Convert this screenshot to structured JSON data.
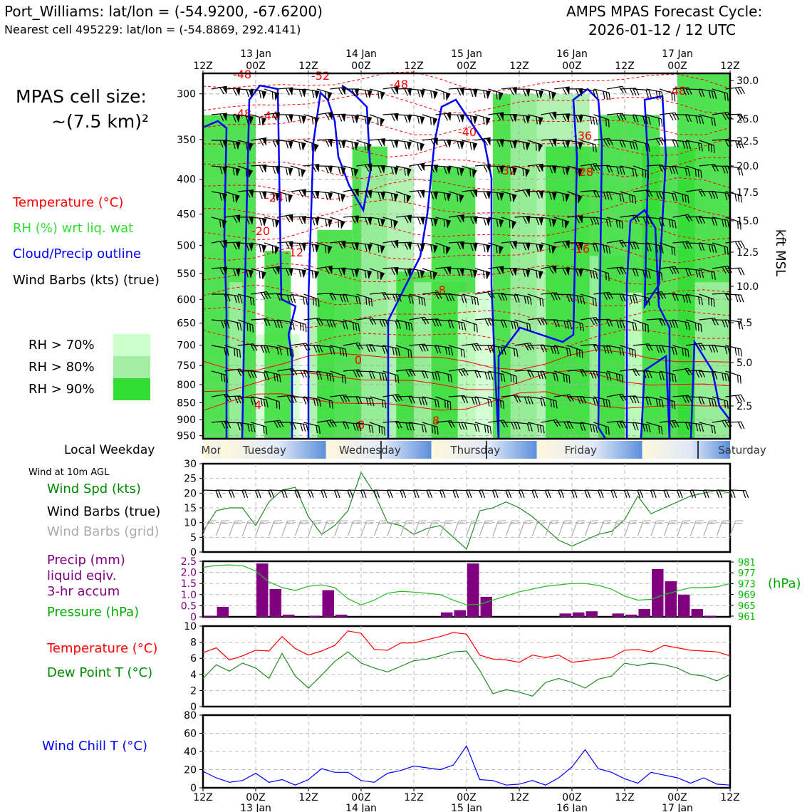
{
  "header": {
    "station": "Port_Williams: lat/lon = (-54.9200, -67.6200)",
    "nearest": "Nearest cell 495229: lat/lon = (-54.8869, 292.4141)",
    "model": "AMPS MPAS Forecast Cycle:",
    "cycle": "2026-01-12 / 12 UTC",
    "cell_size": "MPAS cell size:",
    "cell_size_value": "~(7.5 km)²"
  },
  "legend_top": {
    "temperature": "Temperature (°C)",
    "rh": "RH (%) wrt liq. wat",
    "cloud": "Cloud/Precip outline",
    "wind": "Wind Barbs (kts) (true)",
    "rh70": "RH > 70%",
    "rh80": "RH > 80%",
    "rh90": "RH > 90%",
    "colors": {
      "temp": "#ff0000",
      "rh": "#33dd33",
      "cloud": "#0000ff",
      "rh70": "#ccffcc",
      "rh80": "#a3eea3",
      "rh90": "#33dd33"
    }
  },
  "time_axis": {
    "ticks": [
      "12Z",
      "00Z",
      "12Z",
      "00Z",
      "12Z",
      "00Z",
      "12Z",
      "00Z",
      "12Z",
      "00Z",
      "12Z"
    ],
    "dates": [
      "13 Jan",
      "14 Jan",
      "15 Jan",
      "16 Jan",
      "17 Jan"
    ],
    "weekdays": [
      "Monday",
      "Tuesday",
      "Wednesday",
      "Thursday",
      "Friday",
      "Saturday"
    ],
    "weekday_label": "Local Weekday"
  },
  "profile_axis": {
    "pressure_ticks": [
      "300",
      "350",
      "400",
      "450",
      "500",
      "550",
      "600",
      "650",
      "700",
      "750",
      "800",
      "850",
      "900",
      "950"
    ],
    "kft_ticks": [
      "30.0",
      "25.0",
      "22.5",
      "20.0",
      "17.5",
      "15.0",
      "12.5",
      "10.0",
      "7.5",
      "5.0",
      "2.5"
    ],
    "kft_label": "kft MSL",
    "temp_labels": [
      "-48",
      "-52",
      "-48",
      "-48",
      "-48",
      "-44",
      "-40",
      "-36",
      "-32",
      "-28",
      "-24",
      "-20",
      "-16",
      "-12",
      "-8",
      "-4",
      "0",
      "8",
      "8",
      "4"
    ]
  },
  "wind_panel": {
    "title": "Wind at 10m AGL",
    "speed_label": "Wind Spd (kts)",
    "barbs_true": "Wind Barbs (true)",
    "barbs_grid": "Wind Barbs (grid)",
    "yticks": [
      "0",
      "5",
      "10",
      "15",
      "20",
      "25",
      "30"
    ]
  },
  "precip_panel": {
    "precip_label_1": "Precip (mm)",
    "precip_label_2": "liquid eqiv.",
    "precip_label_3": "3-hr accum",
    "pressure_label": "Pressure (hPa)",
    "hpa_label": "(hPa)",
    "left_ticks": [
      "0",
      "0.5",
      "1.0",
      "1.5",
      "2.0",
      "2.5"
    ],
    "right_ticks": [
      "981",
      "977",
      "973",
      "969",
      "965",
      "961"
    ]
  },
  "temp_panel": {
    "temp_label": "Temperature (°C)",
    "dew_label": "Dew Point T (°C)",
    "yticks": [
      "0",
      "2",
      "4",
      "6",
      "8",
      "10"
    ]
  },
  "chill_panel": {
    "label": "Wind Chill T (°C)",
    "yticks": [
      "0",
      "20",
      "40",
      "60",
      "80"
    ]
  },
  "chart_data": [
    {
      "type": "line",
      "title": "Wind Spd (kts)",
      "x_hours": [
        0,
        3,
        6,
        9,
        12,
        15,
        18,
        21,
        24,
        27,
        30,
        33,
        36,
        39,
        42,
        45,
        48,
        51,
        54,
        57,
        60,
        63,
        66,
        69,
        72,
        75,
        78,
        81,
        84,
        87,
        90,
        93,
        96,
        99,
        102,
        105,
        108,
        111,
        114,
        117,
        120
      ],
      "values": [
        7,
        14,
        15,
        15,
        9,
        17,
        21,
        22,
        12,
        6,
        9,
        14,
        27,
        20,
        10,
        9,
        6,
        8,
        9,
        5,
        1,
        14,
        15,
        17,
        15,
        12,
        8,
        4,
        2,
        4,
        6,
        7,
        11,
        19,
        13,
        15,
        17,
        19,
        20,
        21,
        20
      ],
      "ylim": [
        0,
        30
      ]
    },
    {
      "type": "bar",
      "title": "Precip (mm) 3-hr accum",
      "x_hours": [
        0,
        3,
        6,
        9,
        12,
        15,
        18,
        21,
        24,
        27,
        30,
        33,
        36,
        39,
        42,
        45,
        48,
        51,
        54,
        57,
        60,
        63,
        66,
        69,
        72,
        75,
        78,
        81,
        84,
        87,
        90,
        93,
        96,
        99,
        102,
        105,
        108,
        111,
        114,
        117,
        120
      ],
      "values": [
        0.05,
        0.45,
        0,
        0,
        2.4,
        1.25,
        0.1,
        0,
        0.05,
        1.2,
        0.1,
        0,
        0,
        0,
        0,
        0,
        0,
        0,
        0.2,
        0.3,
        2.4,
        0.9,
        0,
        0,
        0,
        0,
        0,
        0.15,
        0.2,
        0.25,
        0,
        0.15,
        0.1,
        0.35,
        2.15,
        1.6,
        1.0,
        0.35,
        0.05,
        0,
        0
      ],
      "ylim": [
        0,
        2.5
      ]
    },
    {
      "type": "line",
      "title": "Pressure (hPa)",
      "x_hours": [
        0,
        3,
        6,
        9,
        12,
        15,
        18,
        21,
        24,
        27,
        30,
        33,
        36,
        39,
        42,
        45,
        48,
        51,
        54,
        57,
        60,
        63,
        66,
        69,
        72,
        75,
        78,
        81,
        84,
        87,
        90,
        93,
        96,
        99,
        102,
        105,
        108,
        111,
        114,
        117,
        120
      ],
      "values": [
        978.8,
        979.5,
        979.7,
        979.4,
        977.5,
        973.6,
        971.5,
        970.5,
        972.0,
        972.5,
        971.5,
        967.5,
        965.3,
        967.0,
        969.5,
        970.2,
        969.9,
        969.5,
        969.0,
        967.0,
        965.3,
        965.5,
        967.0,
        968.5,
        970.0,
        971.0,
        972.0,
        972.5,
        973.0,
        973.0,
        972.3,
        971.0,
        968.5,
        967.0,
        967.3,
        969.0,
        970.3,
        971.5,
        971.5,
        971.8,
        973.0
      ],
      "ylim": [
        961,
        981
      ]
    },
    {
      "type": "line",
      "title": "Temperature (°C)",
      "x_hours": [
        0,
        3,
        6,
        9,
        12,
        15,
        18,
        21,
        24,
        27,
        30,
        33,
        36,
        39,
        42,
        45,
        48,
        51,
        54,
        57,
        60,
        63,
        66,
        69,
        72,
        75,
        78,
        81,
        84,
        87,
        90,
        93,
        96,
        99,
        102,
        105,
        108,
        111,
        114,
        117,
        120
      ],
      "values": [
        6.7,
        7.3,
        5.8,
        6.3,
        7.0,
        6.9,
        8.7,
        7.2,
        6.4,
        6.9,
        7.6,
        9.4,
        9.1,
        7.1,
        7.0,
        7.9,
        7.9,
        8.3,
        8.7,
        9.2,
        9.0,
        6.4,
        5.9,
        5.8,
        5.5,
        6.4,
        6.1,
        6.4,
        5.5,
        5.7,
        5.9,
        6.1,
        7.0,
        7.1,
        6.8,
        7.6,
        7.3,
        7.0,
        6.9,
        6.8,
        6.3
      ],
      "ylim": [
        0,
        10
      ]
    },
    {
      "type": "line",
      "title": "Dew Point T (°C)",
      "x_hours": [
        0,
        3,
        6,
        9,
        12,
        15,
        18,
        21,
        24,
        27,
        30,
        33,
        36,
        39,
        42,
        45,
        48,
        51,
        54,
        57,
        60,
        63,
        66,
        69,
        72,
        75,
        78,
        81,
        84,
        87,
        90,
        93,
        96,
        99,
        102,
        105,
        108,
        111,
        114,
        117,
        120
      ],
      "values": [
        3.5,
        5.2,
        4.4,
        5.4,
        4.8,
        3.5,
        6.6,
        3.8,
        2.3,
        3.9,
        5.6,
        6.8,
        5.4,
        4.8,
        4.3,
        5.0,
        5.7,
        5.9,
        6.3,
        6.8,
        6.9,
        4.5,
        1.6,
        2.1,
        1.8,
        1.3,
        3.0,
        3.5,
        3.0,
        2.3,
        3.4,
        3.8,
        5.4,
        5.1,
        5.4,
        5.2,
        4.8,
        4.0,
        3.8,
        3.2,
        4.0
      ],
      "ylim": [
        0,
        10
      ]
    },
    {
      "type": "line",
      "title": "Wind Chill T (°C)",
      "x_hours": [
        0,
        3,
        6,
        9,
        12,
        15,
        18,
        21,
        24,
        27,
        30,
        33,
        36,
        39,
        42,
        45,
        48,
        51,
        54,
        57,
        60,
        63,
        66,
        69,
        72,
        75,
        78,
        81,
        84,
        87,
        90,
        93,
        96,
        99,
        102,
        105,
        108,
        111,
        114,
        117,
        120
      ],
      "values": [
        18,
        11,
        6,
        8,
        16,
        6,
        9,
        3,
        9,
        21,
        17,
        17,
        8,
        6,
        16,
        19,
        24,
        22,
        20,
        25,
        46,
        9,
        8,
        3,
        4,
        8,
        3,
        11,
        23,
        42,
        21,
        17,
        10,
        5,
        17,
        14,
        11,
        5,
        11,
        4,
        3
      ],
      "ylim": [
        0,
        80
      ]
    }
  ]
}
